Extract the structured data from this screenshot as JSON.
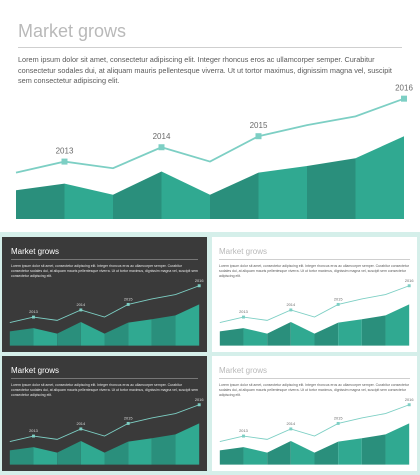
{
  "slides": {
    "main": {
      "title": "Market grows",
      "body": "Lorem ipsum dolor sit amet, consectetur adipiscing elit. Integer rhoncus eros ac ullamcorper semper. Curabitur consectetur sodales dui, at aliquam mauris pellentesque viverra. Ut ut tortor maximus, dignissim magna vel, suscipit sem consectetur adipiscing elit."
    },
    "thumb_dark_1": {
      "title": "Market grows",
      "body": "Lorem ipsum dolor sit amet, consectetur adipiscing elit. Integer rhoncus eros ac ullamcorper semper. Curabitur consectetur sodales dui, at aliquam mauris pellentesque viverra. Ut ut tortor maximus, dignissim magna vel, suscipit sem consectetur adipiscing elit."
    },
    "thumb_light_1": {
      "title": "Market grows",
      "body": "Lorem ipsum dolor sit amet, consectetur adipiscing elit. Integer rhoncus eros ac ullamcorper semper. Curabitur consectetur sodales dui, at aliquam mauris pellentesque viverra. Ut ut tortor maximus, dignissim magna vel, suscipit sem consectetur adipiscing elit."
    },
    "thumb_dark_2": {
      "title": "Market grows",
      "body": "Lorem ipsum dolor sit amet, consectetur adipiscing elit. Integer rhoncus eros ac ullamcorper semper. Curabitur consectetur sodales dui, at aliquam mauris pellentesque viverra. Ut ut tortor maximus, dignissim magna vel, suscipit sem consectetur adipiscing elit."
    },
    "thumb_light_2": {
      "title": "Market grows",
      "body": "Lorem ipsum dolor sit amet, consectetur adipiscing elit. Integer rhoncus eros ac ullamcorper semper. Curabitur consectetur sodales dui, at aliquam mauris pellentesque viverra. Ut ut tortor maximus, dignissim magna vel, suscipit sem consectetur adipiscing elit."
    }
  },
  "chart_data": {
    "type": "area",
    "x_positions": [
      0,
      1,
      2,
      3,
      4,
      5,
      6,
      7,
      8
    ],
    "series": [
      {
        "style": "area",
        "values": [
          26,
          32,
          22,
          43,
          22,
          42,
          48,
          55,
          75
        ],
        "colors": [
          "#2a8f7c",
          "#30a991",
          "#2a8f7c",
          "#30a991",
          "#2a8f7c",
          "#30a991",
          "#2a8f7c",
          "#30a991",
          "#2a8f7c"
        ]
      },
      {
        "style": "line",
        "values": [
          42,
          52,
          46,
          65,
          52,
          75,
          85,
          93,
          109
        ],
        "color": "#7dcfc4"
      }
    ],
    "annotations": [
      {
        "label": "2013",
        "x": 1,
        "y": 52
      },
      {
        "label": "2014",
        "x": 3,
        "y": 65
      },
      {
        "label": "2015",
        "x": 5,
        "y": 75
      },
      {
        "label": "2016",
        "x": 8,
        "y": 109
      }
    ],
    "ylim": [
      0,
      125
    ],
    "grid": false,
    "legend": "none"
  }
}
